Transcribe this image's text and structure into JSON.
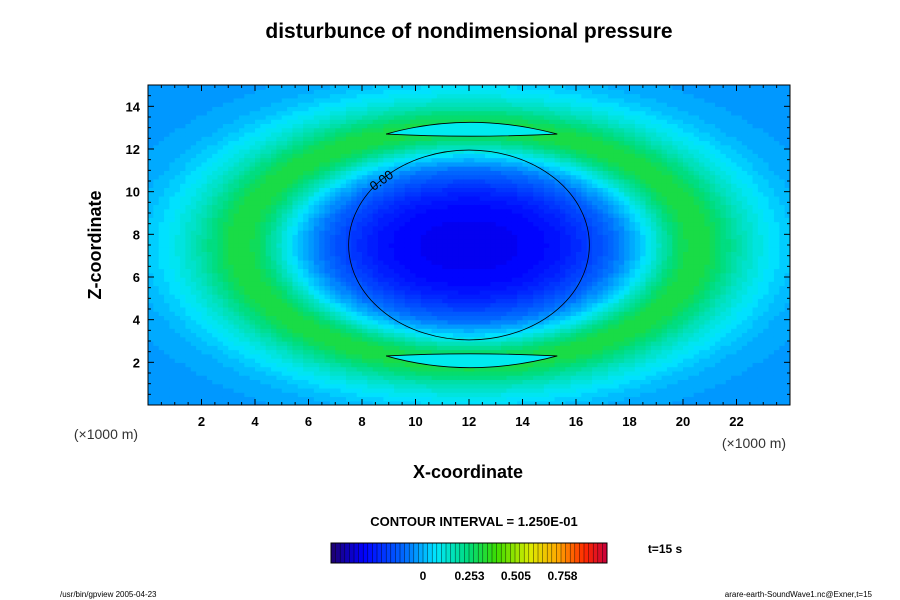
{
  "chart_data": {
    "type": "heatmap",
    "title": "disturbunce of nondimensional pressure",
    "xlabel": "X-coordinate",
    "ylabel": "Z-coordinate",
    "x_unit_label": "(×1000 m)",
    "y_unit_label": "(×1000 m)",
    "xlim": [
      0,
      24
    ],
    "ylim": [
      0,
      15
    ],
    "x_ticks": [
      2,
      4,
      6,
      8,
      10,
      12,
      14,
      16,
      18,
      20,
      22
    ],
    "y_ticks": [
      2,
      4,
      6,
      8,
      10,
      12,
      14
    ],
    "contour_line_label": "0.00",
    "contour_interval_text": "CONTOUR INTERVAL = 1.250E-01",
    "time_label": "t=15 s",
    "colorbar": {
      "min": -0.5,
      "max": 1.0,
      "tick_values": [
        0,
        0.253,
        0.505,
        0.758
      ],
      "tick_labels": [
        "0",
        "0.253",
        "0.505",
        "0.758"
      ]
    },
    "field_summary": {
      "center_x": 12,
      "center_z": 7.5,
      "background_value": -0.05,
      "core_min_value": -0.3,
      "ring_max_value": 0.32
    },
    "footer_left": "/usr/bin/gpview 2005-04-23",
    "footer_right": "arare-earth-SoundWave1.nc@Exner,t=15"
  }
}
